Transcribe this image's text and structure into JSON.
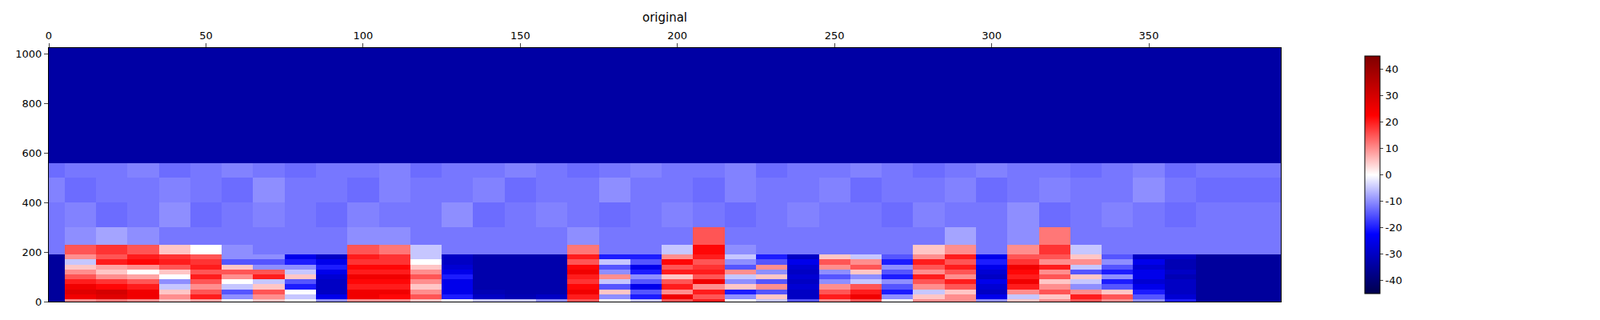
{
  "chart_data": {
    "type": "heatmap",
    "title": "original",
    "x": [
      0,
      5,
      15,
      25,
      35,
      45,
      55,
      65,
      75,
      85,
      95,
      105,
      115,
      125,
      135,
      145,
      155,
      165,
      175,
      185,
      195,
      205,
      215,
      225,
      235,
      245,
      255,
      265,
      275,
      285,
      295,
      305,
      315,
      325,
      335,
      345,
      355,
      365,
      392
    ],
    "y": [
      0,
      10,
      30,
      50,
      70,
      90,
      110,
      130,
      150,
      170,
      190,
      230,
      300,
      400,
      500,
      560,
      1024
    ],
    "z": [
      [
        -35,
        10,
        12,
        10,
        5,
        8,
        0,
        5,
        0,
        -10,
        10,
        10,
        5,
        0,
        -5,
        -5,
        -10,
        15,
        0,
        -5,
        15,
        20,
        0,
        -5,
        -15,
        10,
        15,
        0,
        10,
        10,
        -10,
        5,
        10,
        15,
        10,
        -10,
        -20,
        -35
      ],
      [
        -35,
        25,
        28,
        25,
        10,
        20,
        -10,
        10,
        -5,
        -25,
        25,
        22,
        15,
        -20,
        -30,
        -32,
        -30,
        20,
        -10,
        -20,
        25,
        15,
        -10,
        5,
        -30,
        20,
        25,
        -10,
        5,
        10,
        -25,
        -5,
        5,
        20,
        15,
        -15,
        -28,
        -35
      ],
      [
        -35,
        28,
        30,
        25,
        5,
        15,
        -15,
        15,
        0,
        -30,
        25,
        25,
        10,
        -25,
        -32,
        -33,
        -33,
        25,
        5,
        -15,
        10,
        20,
        -20,
        -15,
        -30,
        15,
        20,
        -20,
        -5,
        5,
        -30,
        10,
        15,
        10,
        5,
        -20,
        -30,
        -35
      ],
      [
        -35,
        25,
        22,
        20,
        -5,
        10,
        -5,
        5,
        -20,
        -30,
        20,
        20,
        5,
        -25,
        -33,
        -33,
        -33,
        22,
        -15,
        -25,
        20,
        10,
        5,
        10,
        -28,
        10,
        15,
        -15,
        10,
        15,
        -28,
        20,
        10,
        -10,
        -15,
        -25,
        -30,
        -35
      ],
      [
        -35,
        20,
        18,
        15,
        -10,
        15,
        0,
        -5,
        -15,
        -30,
        22,
        22,
        10,
        -25,
        -33,
        -33,
        -33,
        18,
        -5,
        -15,
        15,
        25,
        -10,
        -15,
        -30,
        -10,
        -5,
        -10,
        15,
        20,
        -25,
        25,
        5,
        -5,
        -20,
        -28,
        -30,
        -35
      ],
      [
        -35,
        15,
        10,
        8,
        0,
        20,
        10,
        20,
        5,
        -28,
        25,
        25,
        15,
        -20,
        -33,
        -33,
        -33,
        20,
        10,
        -10,
        5,
        15,
        -5,
        5,
        -28,
        -15,
        -10,
        -20,
        20,
        10,
        -30,
        20,
        15,
        5,
        -10,
        -25,
        -32,
        -35
      ],
      [
        -35,
        10,
        5,
        0,
        5,
        15,
        15,
        15,
        -5,
        -25,
        20,
        20,
        10,
        -25,
        -33,
        -33,
        -33,
        25,
        -10,
        -20,
        20,
        20,
        10,
        -10,
        -30,
        -10,
        5,
        -15,
        10,
        15,
        -28,
        22,
        10,
        -15,
        -20,
        -25,
        -30,
        -35
      ],
      [
        -35,
        5,
        8,
        10,
        15,
        20,
        5,
        -10,
        -10,
        -20,
        22,
        22,
        5,
        -28,
        -33,
        -33,
        -33,
        22,
        -15,
        -25,
        15,
        18,
        -15,
        10,
        -28,
        10,
        15,
        -10,
        15,
        20,
        -25,
        25,
        20,
        -5,
        -15,
        -28,
        -32,
        -35
      ],
      [
        -35,
        -5,
        20,
        22,
        20,
        18,
        -15,
        -15,
        -20,
        -25,
        18,
        18,
        0,
        -30,
        -33,
        -33,
        -33,
        15,
        -5,
        -15,
        22,
        15,
        -10,
        -15,
        -25,
        15,
        10,
        -20,
        20,
        15,
        -20,
        18,
        10,
        10,
        -10,
        -25,
        -32,
        -35
      ],
      [
        -35,
        10,
        15,
        20,
        18,
        15,
        -10,
        -10,
        -25,
        -30,
        20,
        18,
        -5,
        -30,
        -33,
        -33,
        -33,
        20,
        -20,
        -20,
        10,
        20,
        -5,
        -20,
        -30,
        5,
        -5,
        -15,
        10,
        20,
        -25,
        15,
        15,
        5,
        -15,
        -30,
        -30,
        -35
      ],
      [
        -12,
        15,
        18,
        15,
        5,
        0,
        -10,
        -12,
        -12,
        -12,
        15,
        12,
        -5,
        -12,
        -12,
        -12,
        -12,
        12,
        -12,
        -12,
        -5,
        22,
        -10,
        -12,
        -12,
        -12,
        -12,
        -12,
        5,
        10,
        -12,
        10,
        18,
        -5,
        -12,
        -12,
        -12,
        -12
      ],
      [
        -12,
        -10,
        -8,
        -10,
        -12,
        -12,
        -12,
        -12,
        -12,
        -12,
        -10,
        -10,
        -12,
        -12,
        -12,
        -12,
        -12,
        -10,
        -12,
        -12,
        -12,
        15,
        -12,
        -12,
        -12,
        -12,
        -12,
        -12,
        -12,
        -8,
        -12,
        -10,
        12,
        -12,
        -12,
        -12,
        -12,
        -12
      ],
      [
        -12,
        -11,
        -13,
        -12,
        -10,
        -13,
        -12,
        -11,
        -12,
        -13,
        -11,
        -12,
        -12,
        -10,
        -13,
        -12,
        -11,
        -12,
        -13,
        -12,
        -11,
        -12,
        -13,
        -12,
        -11,
        -12,
        -12,
        -13,
        -11,
        -12,
        -12,
        -10,
        -13,
        -12,
        -11,
        -12,
        -13,
        -12
      ],
      [
        -11,
        -13,
        -12,
        -12,
        -11,
        -12,
        -13,
        -10,
        -12,
        -12,
        -13,
        -11,
        -12,
        -12,
        -11,
        -13,
        -12,
        -12,
        -10,
        -12,
        -12,
        -13,
        -11,
        -12,
        -12,
        -11,
        -13,
        -12,
        -12,
        -11,
        -13,
        -12,
        -11,
        -12,
        -12,
        -10,
        -12,
        -13
      ],
      [
        -13,
        -12,
        -12,
        -11,
        -13,
        -12,
        -11,
        -12,
        -13,
        -12,
        -12,
        -11,
        -13,
        -12,
        -12,
        -11,
        -12,
        -13,
        -12,
        -11,
        -12,
        -12,
        -11,
        -13,
        -12,
        -12,
        -11,
        -12,
        -13,
        -12,
        -11,
        -12,
        -12,
        -13,
        -12,
        -11,
        -13,
        -12
      ],
      [
        -34,
        -34,
        -34,
        -34,
        -34,
        -34,
        -34,
        -34,
        -34,
        -34,
        -34,
        -34,
        -34,
        -34,
        -34,
        -34,
        -34,
        -34,
        -34,
        -34,
        -34,
        -34,
        -34,
        -34,
        -34,
        -34,
        -34,
        -34,
        -34,
        -34,
        -34,
        -34,
        -34,
        -34,
        -34,
        -34,
        -34,
        -34
      ]
    ],
    "xlim": [
      0,
      392
    ],
    "xticks": [
      0,
      50,
      100,
      150,
      200,
      250,
      300,
      350
    ],
    "ylim": [
      0,
      1024
    ],
    "yticks": [
      0,
      200,
      400,
      600,
      800,
      1000
    ],
    "zlim": [
      -45,
      45
    ],
    "zticks": [
      -40,
      -30,
      -20,
      -10,
      0,
      10,
      20,
      30,
      40
    ],
    "grid": false
  }
}
